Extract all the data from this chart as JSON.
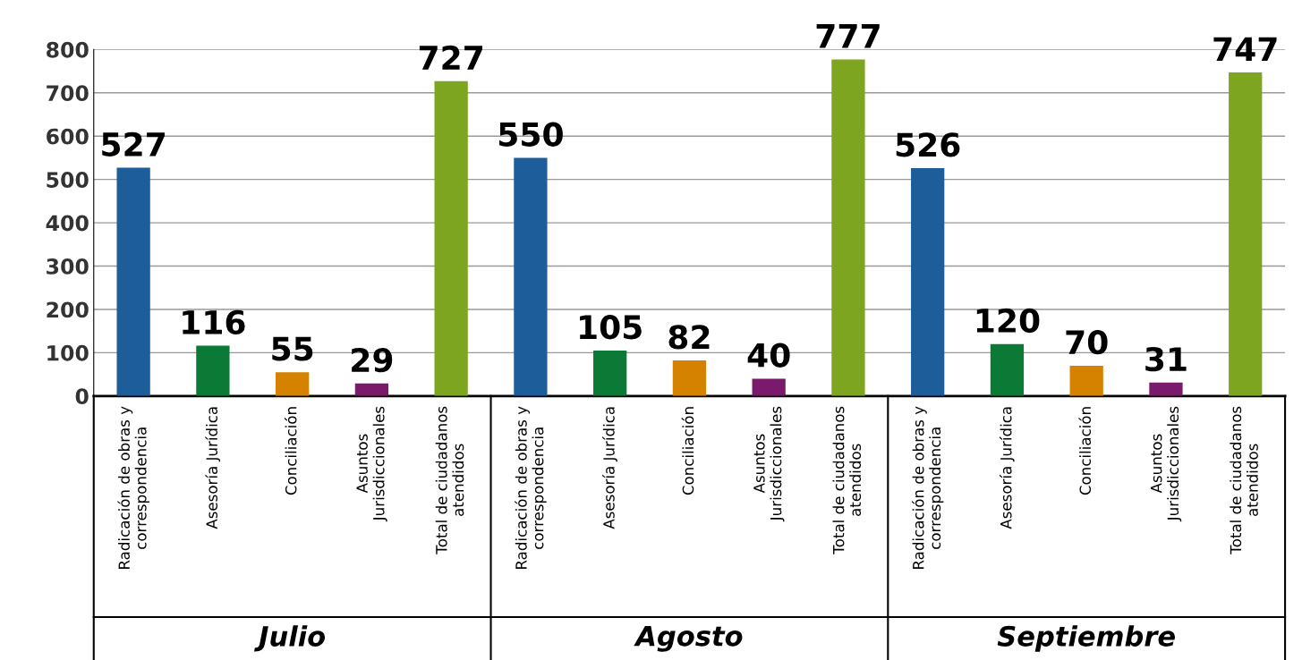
{
  "chart_data": {
    "type": "bar",
    "categories": [
      "Radicación de obras y\ncorrespondencia",
      "Asesoría Jurídica",
      "Conciliación",
      "Asuntos\nJurisdiccionales",
      "Total de ciudadanos\natendidos",
      "Radicación de obras y\ncorrespondencia",
      "Asesoría Jurídica",
      "Conciliación",
      "Asuntos\nJurisdiccionales",
      "Total de ciudadanos\natendidos",
      "Radicación de obras y\ncorrespondencia",
      "Asesoría Jurídica",
      "Conciliación",
      "Asuntos\nJurisdiccionales",
      "Total de ciudadanos\natendidos"
    ],
    "values": [
      527,
      116,
      55,
      29,
      727,
      550,
      105,
      82,
      40,
      777,
      526,
      120,
      70,
      31,
      747
    ],
    "colors": [
      "#1d5d99",
      "#0b7a36",
      "#d58200",
      "#7a1a6d",
      "#7ea51f",
      "#1d5d99",
      "#0b7a36",
      "#d58200",
      "#7a1a6d",
      "#7ea51f",
      "#1d5d99",
      "#0b7a36",
      "#d58200",
      "#7a1a6d",
      "#7ea51f"
    ],
    "annotations": [
      "Julio",
      "Agosto",
      "Septiembre"
    ],
    "ylim": [
      0,
      800
    ],
    "yticks": [
      0,
      100,
      200,
      300,
      400,
      500,
      600,
      700,
      800
    ],
    "grid": "y",
    "data_labels": true
  }
}
